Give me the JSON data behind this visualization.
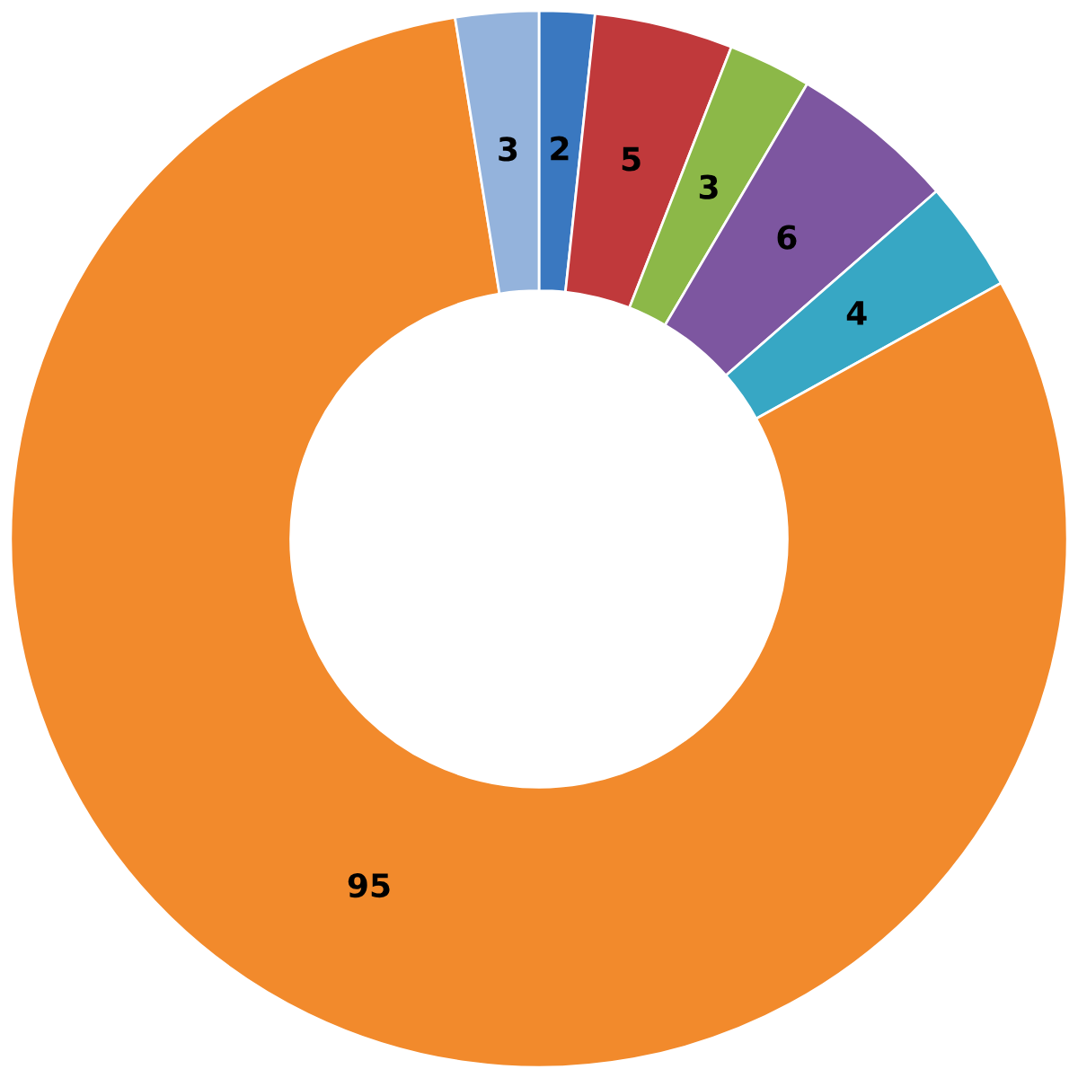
{
  "chart_data": {
    "type": "donut",
    "categories": [
      null,
      null,
      null,
      null,
      null,
      null,
      null
    ],
    "values": [
      2,
      5,
      3,
      6,
      4,
      95,
      3
    ],
    "colors": [
      "#3a78c0",
      "#c0393b",
      "#8cb848",
      "#7d56a0",
      "#37a7c4",
      "#f28a2c",
      "#94b3dc"
    ],
    "data_labels": true,
    "legend": false
  }
}
